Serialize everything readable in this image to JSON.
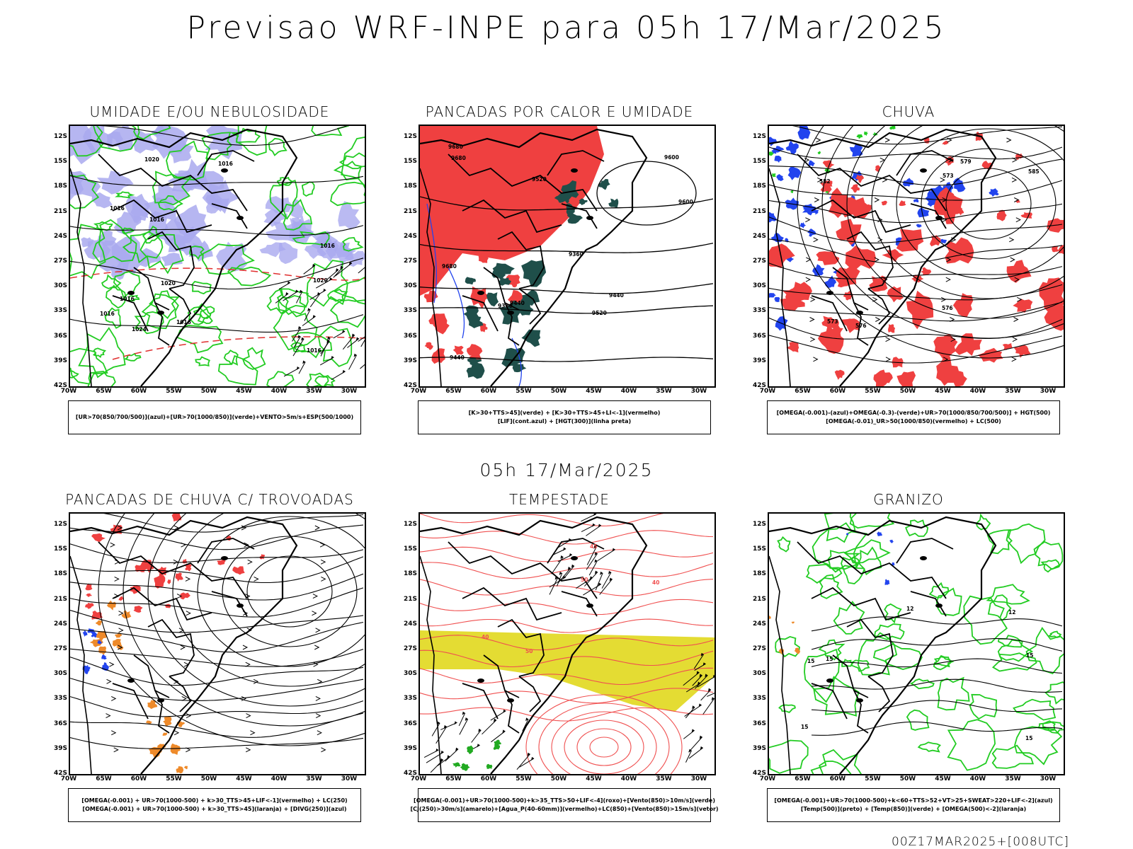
{
  "title": "Previsao WRF-INPE  para 05h 17/Mar/2025",
  "mid_title": "05h 17/Mar/2025",
  "footer": "00Z17MAR2025+[008UTC]",
  "lat_ticks": [
    "12S",
    "15S",
    "18S",
    "21S",
    "24S",
    "27S",
    "30S",
    "33S",
    "36S",
    "39S",
    "42S"
  ],
  "lon_ticks": [
    "70W",
    "65W",
    "60W",
    "55W",
    "50W",
    "45W",
    "40W",
    "35W",
    "30W"
  ],
  "colors": {
    "humidity_blue": "#a9a9ef",
    "green_contour": "#22cc22",
    "red_fill": "#ef4040",
    "dark_teal": "#1f4f4a",
    "blue_fill": "#2244ee",
    "orange_fill": "#ee8a2a",
    "yellow_fill": "#e4dc33",
    "black_line": "#000000"
  },
  "panels": [
    {
      "id": "umidade",
      "title": "UMIDADE E/OU NEBULOSIDADE",
      "legend": [
        "[UR>70(850/700/500)](azul)+[UR>70(1000/850)](verde)+VENTO>5m/s+ESP(500/1000)"
      ],
      "contour_labels": [
        "1016",
        "1016",
        "1016",
        "1016",
        "1020",
        "1016",
        "1016",
        "1020",
        "1024",
        "1020",
        "1016",
        "1016"
      ]
    },
    {
      "id": "pancadas_calor",
      "title": "PANCADAS POR CALOR E UMIDADE",
      "legend": [
        "[K>30+TTS>45](verde) + [K>30+TTS>45+LI<-1](vermelho)",
        "[LIF](cont.azul) + [HGT(300)](linha preta)"
      ],
      "contour_labels": [
        "9680",
        "9680",
        "9680",
        "9600",
        "9600",
        "9520",
        "9520",
        "9440",
        "9440",
        "9440",
        "9360",
        "9360"
      ]
    },
    {
      "id": "chuva",
      "title": "CHUVA",
      "legend": [
        "[OMEGA(-0.001)-(azul)+OMEGA(-0.3)-(verde)+UR>70(1000/850/700/500)] + HGT(500)",
        "[OMEGA(-0.01)_UR>50(1000/850)(vermelho) + LC(500)"
      ],
      "contour_labels": [
        "585",
        "582",
        "579",
        "576",
        "576",
        "573",
        "573"
      ]
    },
    {
      "id": "pancadas_trovoadas",
      "title": "PANCADAS DE CHUVA C/ TROVOADAS",
      "legend": [
        "[OMEGA(-0.001) + UR>70(1000-500) + k>30_TTS>45+LIF<-1](vermelho) + LC(250)",
        "[OMEGA(-0.001) + UR>70(1000-500) + k>30_TTS>45](laranja) + [DIVG(250)](azul)"
      ],
      "contour_labels": []
    },
    {
      "id": "tempestade",
      "title": "TEMPESTADE",
      "legend": [
        "[OMEGA(-0.001)+UR>70(1000-500)+k>35_TTS>50+LIF<-4](roxo)+[Vento(850)>10m/s](verde)",
        "[CJ(250)>30m/s](amarelo)+[Agua_P(40-60mm)](vermelho)+LC(850)+[Vento(850)>15m/s](vetor)"
      ],
      "contour_labels": [
        "50",
        "40",
        "40",
        "45",
        "50"
      ]
    },
    {
      "id": "granizo",
      "title": "GRANIZO",
      "legend": [
        "[OMEGA(-0.001)+UR>70(1000-500)+k<60+TTS>52+VT>25+SWEAT>220+LIF<-2](azul)",
        "[Temp(500)](preto) + [Temp(850)](verde) + [OMEGA(500)<-2](laranja)"
      ],
      "contour_labels": [
        "15",
        "12",
        "12",
        "15",
        "15",
        "15",
        "15"
      ]
    }
  ]
}
